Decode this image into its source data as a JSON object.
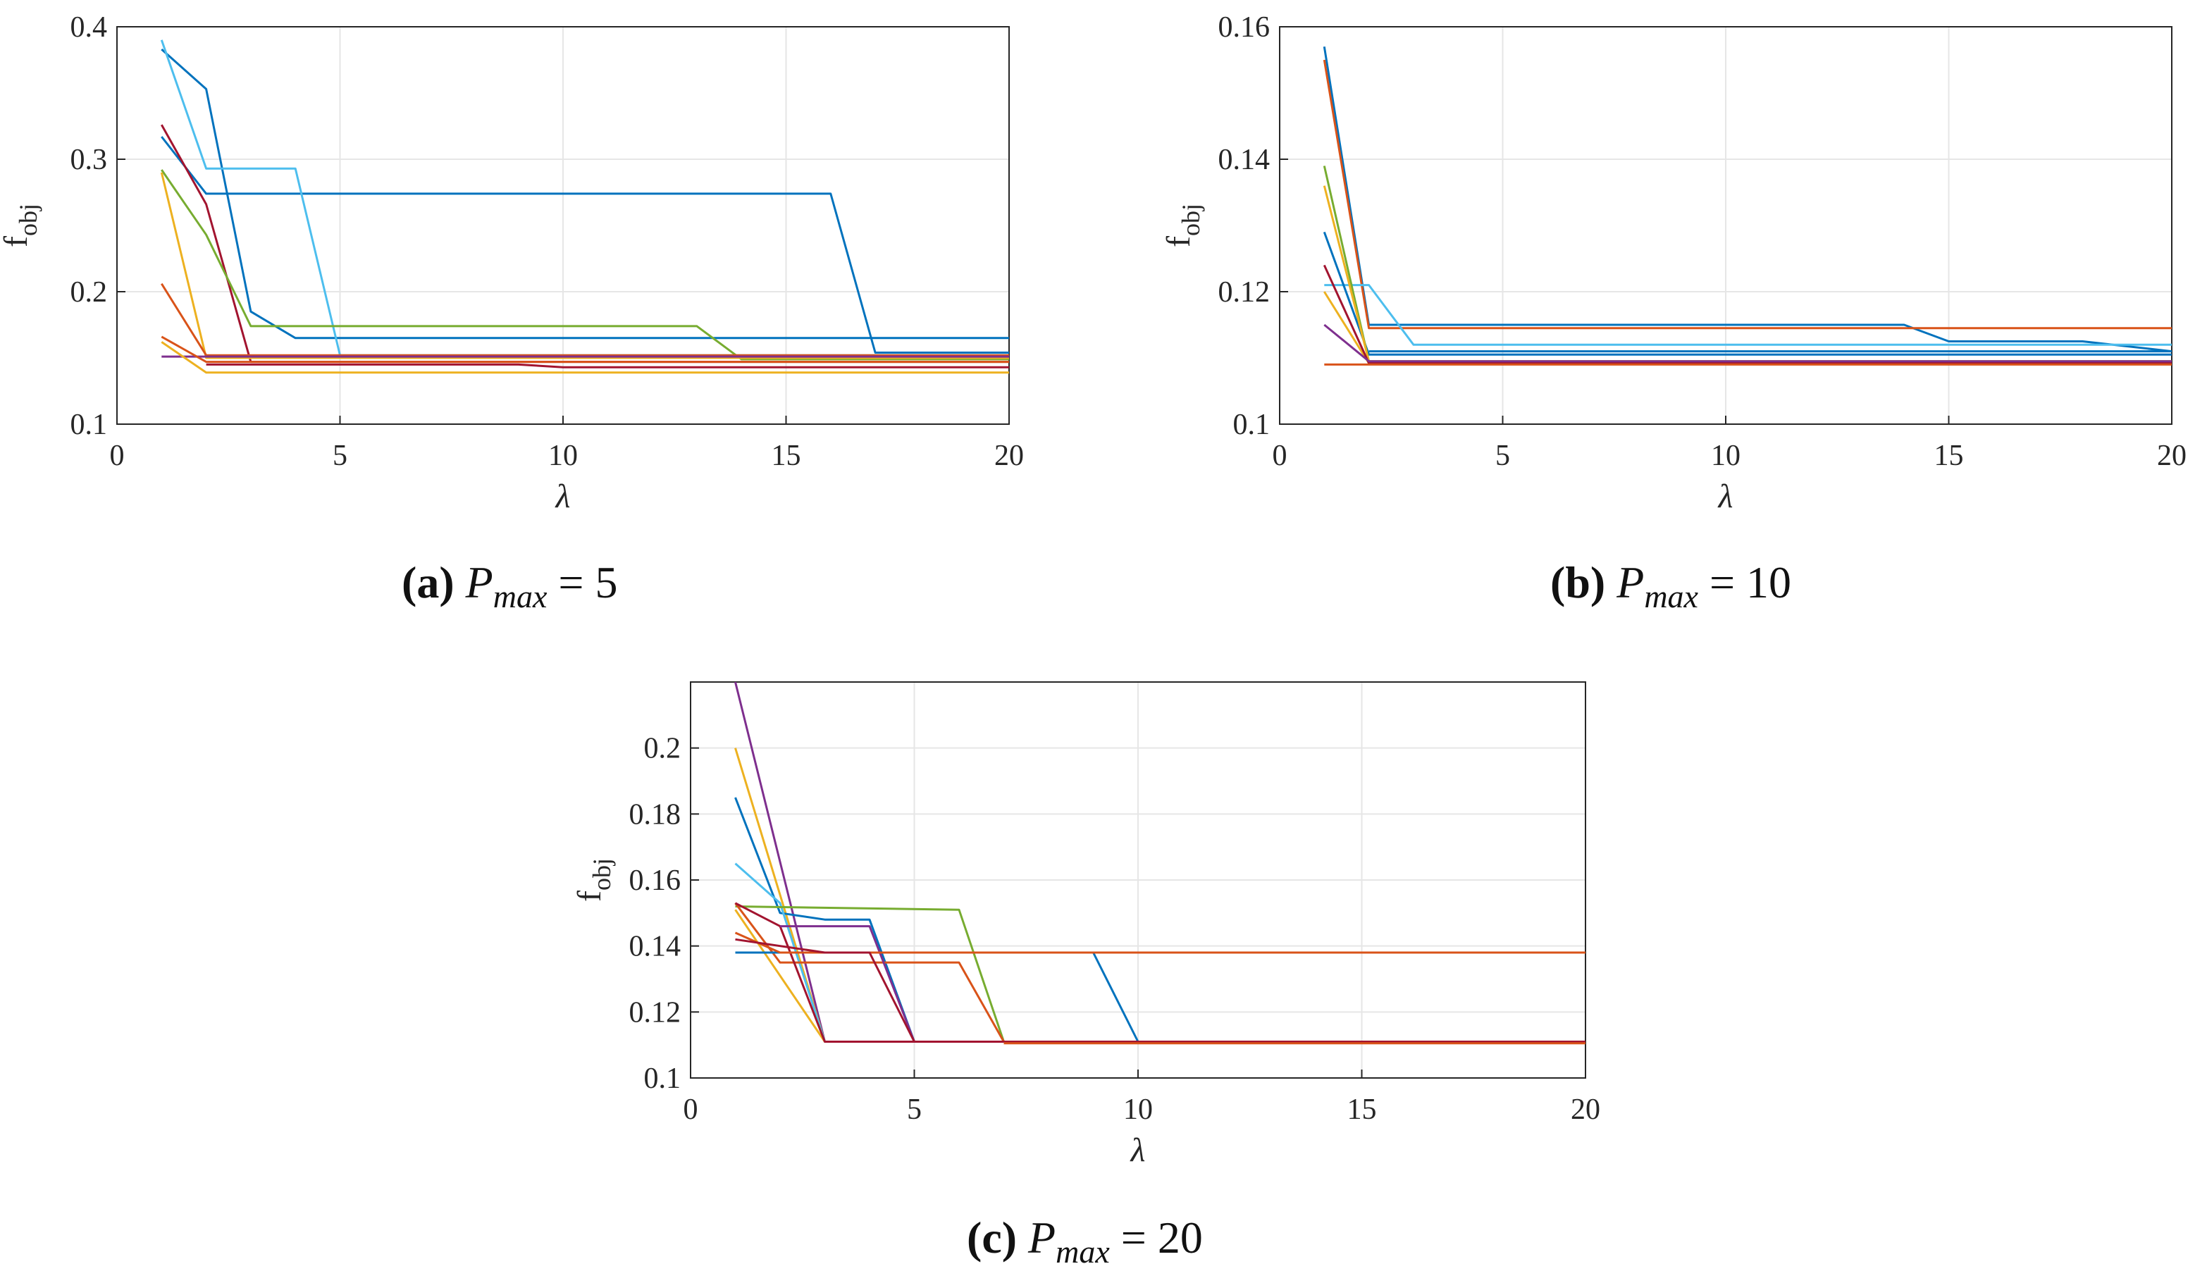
{
  "colors": {
    "c1": "#0072BD",
    "c2": "#D95319",
    "c3": "#EDB120",
    "c4": "#7E2F8E",
    "c5": "#77AC30",
    "c6": "#4DBEEE",
    "c7": "#A2142F"
  },
  "chart_data": [
    {
      "type": "line",
      "panel_label": "(a)",
      "caption_symbol": "P",
      "caption_subscript": "max",
      "caption_value": "= 5",
      "xlabel": "λ",
      "ylabel": "f",
      "ylabel_sub": "obj",
      "xlim": [
        0,
        20
      ],
      "ylim": [
        0.1,
        0.4
      ],
      "xticks": [
        0,
        5,
        10,
        15,
        20
      ],
      "yticks": [
        0.1,
        0.2,
        0.3,
        0.4
      ],
      "ytick_labels": [
        "0.1",
        "0.2",
        "0.3",
        "0.4"
      ],
      "grid": true,
      "series": [
        {
          "color": "c1",
          "x": [
            1,
            2,
            3,
            4,
            20
          ],
          "y": [
            0.383,
            0.353,
            0.185,
            0.165,
            0.165
          ]
        },
        {
          "color": "c1",
          "x": [
            1,
            2,
            16,
            17,
            20
          ],
          "y": [
            0.317,
            0.274,
            0.274,
            0.154,
            0.154
          ]
        },
        {
          "color": "c6",
          "x": [
            1,
            2,
            4,
            5,
            20
          ],
          "y": [
            0.39,
            0.293,
            0.293,
            0.152,
            0.152
          ]
        },
        {
          "color": "c7",
          "x": [
            1,
            2,
            3,
            20
          ],
          "y": [
            0.326,
            0.266,
            0.147,
            0.147
          ]
        },
        {
          "color": "c5",
          "x": [
            1,
            2,
            3,
            13,
            14,
            20
          ],
          "y": [
            0.292,
            0.243,
            0.174,
            0.174,
            0.149,
            0.149
          ]
        },
        {
          "color": "c3",
          "x": [
            1,
            2,
            20
          ],
          "y": [
            0.29,
            0.15,
            0.15
          ]
        },
        {
          "color": "c2",
          "x": [
            1,
            2,
            20
          ],
          "y": [
            0.206,
            0.152,
            0.152
          ]
        },
        {
          "color": "c4",
          "x": [
            1,
            20
          ],
          "y": [
            0.151,
            0.151
          ]
        },
        {
          "color": "c2",
          "x": [
            1,
            2,
            20
          ],
          "y": [
            0.166,
            0.147,
            0.147
          ]
        },
        {
          "color": "c3",
          "x": [
            1,
            2,
            20
          ],
          "y": [
            0.162,
            0.139,
            0.139
          ]
        },
        {
          "color": "c7",
          "x": [
            2,
            9,
            10,
            20
          ],
          "y": [
            0.145,
            0.145,
            0.143,
            0.143
          ]
        }
      ]
    },
    {
      "type": "line",
      "panel_label": "(b)",
      "caption_symbol": "P",
      "caption_subscript": "max",
      "caption_value": "= 10",
      "xlabel": "λ",
      "ylabel": "f",
      "ylabel_sub": "obj",
      "xlim": [
        0,
        20
      ],
      "ylim": [
        0.1,
        0.16
      ],
      "xticks": [
        0,
        5,
        10,
        15,
        20
      ],
      "yticks": [
        0.1,
        0.12,
        0.14,
        0.16
      ],
      "ytick_labels": [
        "0.1",
        "0.12",
        "0.14",
        "0.16"
      ],
      "grid": true,
      "series": [
        {
          "color": "c1",
          "x": [
            1,
            2,
            14,
            15,
            18,
            20
          ],
          "y": [
            0.157,
            0.115,
            0.115,
            0.1125,
            0.1125,
            0.111
          ]
        },
        {
          "color": "c2",
          "x": [
            1,
            2,
            20
          ],
          "y": [
            0.155,
            0.1145,
            0.1145
          ]
        },
        {
          "color": "c6",
          "x": [
            1,
            2,
            3,
            20
          ],
          "y": [
            0.121,
            0.121,
            0.112,
            0.112
          ]
        },
        {
          "color": "c1",
          "x": [
            1,
            2,
            20
          ],
          "y": [
            0.129,
            0.1105,
            0.1105
          ]
        },
        {
          "color": "c5",
          "x": [
            1,
            2,
            20
          ],
          "y": [
            0.139,
            0.1095,
            0.1095
          ]
        },
        {
          "color": "c3",
          "x": [
            1,
            2,
            20
          ],
          "y": [
            0.136,
            0.1095,
            0.1095
          ]
        },
        {
          "color": "c3",
          "x": [
            1,
            2,
            20
          ],
          "y": [
            0.12,
            0.1092,
            0.1092
          ]
        },
        {
          "color": "c7",
          "x": [
            1,
            2,
            20
          ],
          "y": [
            0.124,
            0.1092,
            0.1092
          ]
        },
        {
          "color": "c4",
          "x": [
            1,
            2,
            20
          ],
          "y": [
            0.115,
            0.1095,
            0.1095
          ]
        },
        {
          "color": "c2",
          "x": [
            1,
            20
          ],
          "y": [
            0.109,
            0.109
          ]
        },
        {
          "color": "c1",
          "x": [
            2,
            20
          ],
          "y": [
            0.111,
            0.111
          ]
        }
      ]
    },
    {
      "type": "line",
      "panel_label": "(c)",
      "caption_symbol": "P",
      "caption_subscript": "max",
      "caption_value": "= 20",
      "xlabel": "λ",
      "ylabel": "f",
      "ylabel_sub": "obj",
      "xlim": [
        0,
        20
      ],
      "ylim": [
        0.1,
        0.22
      ],
      "xticks": [
        0,
        5,
        10,
        15,
        20
      ],
      "yticks": [
        0.1,
        0.12,
        0.14,
        0.16,
        0.18,
        0.2
      ],
      "ytick_labels": [
        "0.1",
        "0.12",
        "0.14",
        "0.16",
        "0.18",
        "0.2"
      ],
      "grid": true,
      "series": [
        {
          "color": "c4",
          "x": [
            1,
            3,
            20
          ],
          "y": [
            0.22,
            0.111,
            0.111
          ]
        },
        {
          "color": "c3",
          "x": [
            1,
            3,
            20
          ],
          "y": [
            0.2,
            0.111,
            0.111
          ]
        },
        {
          "color": "c1",
          "x": [
            1,
            2,
            3,
            4,
            5,
            20
          ],
          "y": [
            0.185,
            0.15,
            0.148,
            0.148,
            0.111,
            0.111
          ]
        },
        {
          "color": "c6",
          "x": [
            1,
            2,
            3,
            20
          ],
          "y": [
            0.165,
            0.153,
            0.111,
            0.111
          ]
        },
        {
          "color": "c5",
          "x": [
            1,
            6,
            7,
            20
          ],
          "y": [
            0.152,
            0.151,
            0.111,
            0.111
          ]
        },
        {
          "color": "c3",
          "x": [
            1,
            3,
            20
          ],
          "y": [
            0.151,
            0.111,
            0.111
          ]
        },
        {
          "color": "c2",
          "x": [
            1,
            2,
            6,
            7,
            20
          ],
          "y": [
            0.153,
            0.135,
            0.135,
            0.111,
            0.111
          ]
        },
        {
          "color": "c7",
          "x": [
            1,
            2,
            3,
            20
          ],
          "y": [
            0.153,
            0.146,
            0.111,
            0.111
          ]
        },
        {
          "color": "c4",
          "x": [
            2,
            4,
            5,
            20
          ],
          "y": [
            0.146,
            0.146,
            0.111,
            0.111
          ]
        },
        {
          "color": "c1",
          "x": [
            1,
            9,
            10,
            20
          ],
          "y": [
            0.138,
            0.138,
            0.111,
            0.111
          ]
        },
        {
          "color": "c2",
          "x": [
            1,
            2,
            20
          ],
          "y": [
            0.144,
            0.138,
            0.138
          ]
        },
        {
          "color": "c7",
          "x": [
            1,
            3,
            4,
            5,
            20
          ],
          "y": [
            0.142,
            0.138,
            0.138,
            0.111,
            0.111
          ]
        },
        {
          "color": "c2",
          "x": [
            7,
            20
          ],
          "y": [
            0.1105,
            0.1105
          ]
        }
      ]
    }
  ]
}
